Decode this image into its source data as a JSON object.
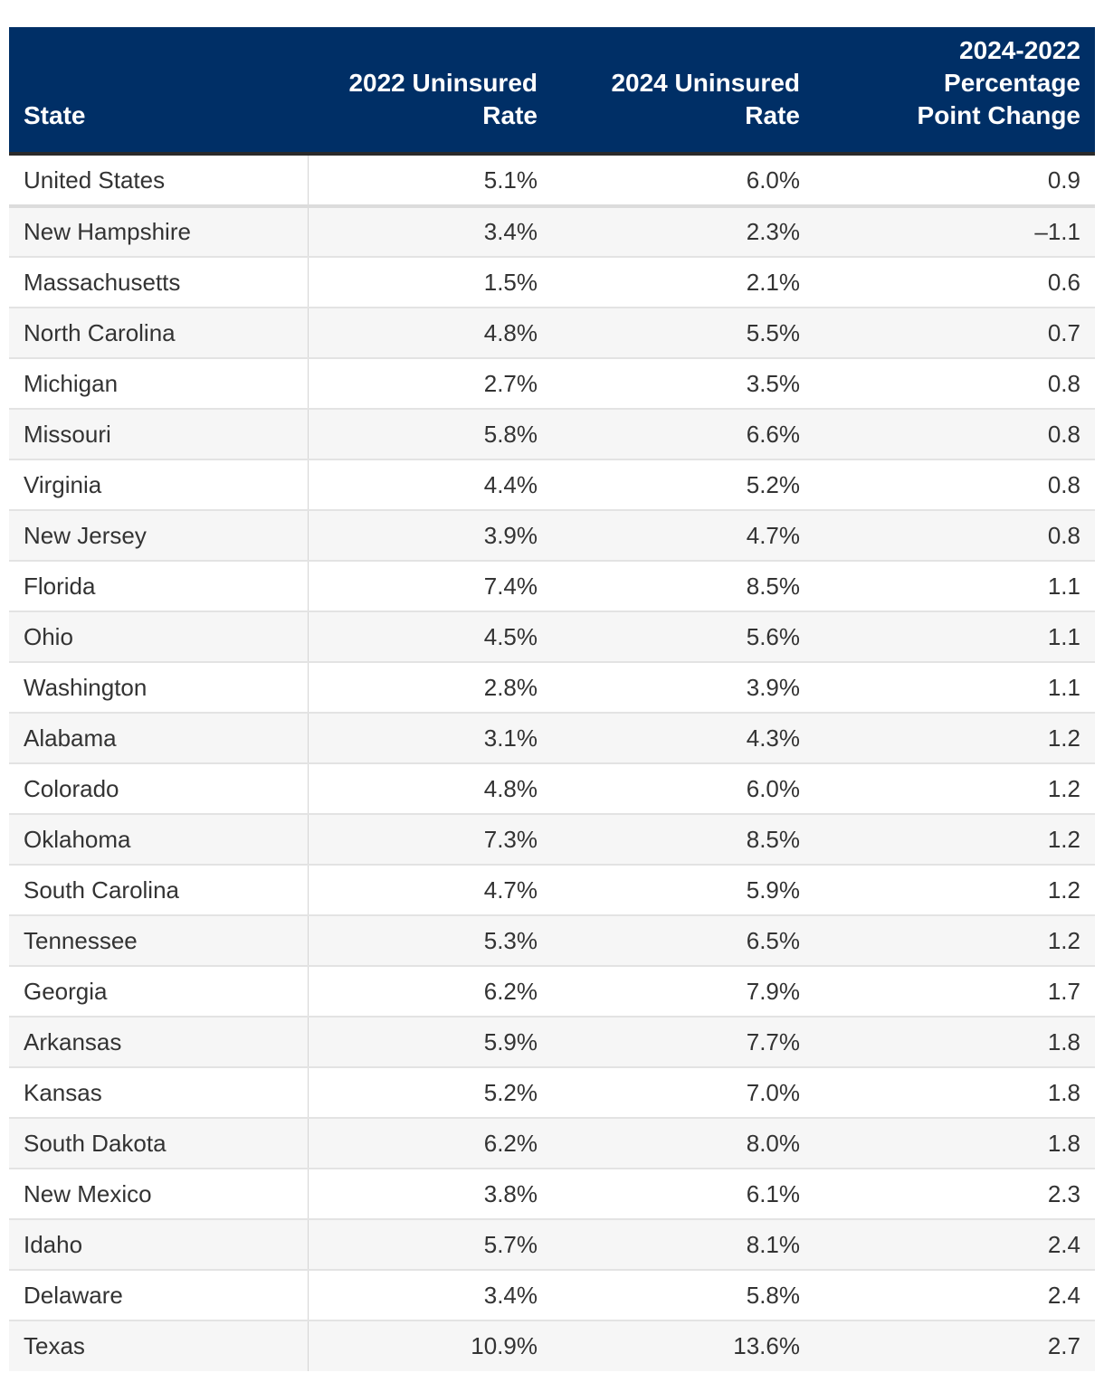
{
  "chart_data": {
    "type": "table",
    "columns": [
      "State",
      "2022 Uninsured Rate",
      "2024 Uninsured Rate",
      "2024-2022 Percentage Point Change"
    ],
    "rows": [
      [
        "United States",
        "5.1%",
        "6.0%",
        "0.9"
      ],
      [
        "New Hampshire",
        "3.4%",
        "2.3%",
        "–1.1"
      ],
      [
        "Massachusetts",
        "1.5%",
        "2.1%",
        "0.6"
      ],
      [
        "North Carolina",
        "4.8%",
        "5.5%",
        "0.7"
      ],
      [
        "Michigan",
        "2.7%",
        "3.5%",
        "0.8"
      ],
      [
        "Missouri",
        "5.8%",
        "6.6%",
        "0.8"
      ],
      [
        "Virginia",
        "4.4%",
        "5.2%",
        "0.8"
      ],
      [
        "New Jersey",
        "3.9%",
        "4.7%",
        "0.8"
      ],
      [
        "Florida",
        "7.4%",
        "8.5%",
        "1.1"
      ],
      [
        "Ohio",
        "4.5%",
        "5.6%",
        "1.1"
      ],
      [
        "Washington",
        "2.8%",
        "3.9%",
        "1.1"
      ],
      [
        "Alabama",
        "3.1%",
        "4.3%",
        "1.2"
      ],
      [
        "Colorado",
        "4.8%",
        "6.0%",
        "1.2"
      ],
      [
        "Oklahoma",
        "7.3%",
        "8.5%",
        "1.2"
      ],
      [
        "South Carolina",
        "4.7%",
        "5.9%",
        "1.2"
      ],
      [
        "Tennessee",
        "5.3%",
        "6.5%",
        "1.2"
      ],
      [
        "Georgia",
        "6.2%",
        "7.9%",
        "1.7"
      ],
      [
        "Arkansas",
        "5.9%",
        "7.7%",
        "1.8"
      ],
      [
        "Kansas",
        "5.2%",
        "7.0%",
        "1.8"
      ],
      [
        "South Dakota",
        "6.2%",
        "8.0%",
        "1.8"
      ],
      [
        "New Mexico",
        "3.8%",
        "6.1%",
        "2.3"
      ],
      [
        "Idaho",
        "5.7%",
        "8.1%",
        "2.4"
      ],
      [
        "Delaware",
        "3.4%",
        "5.8%",
        "2.4"
      ],
      [
        "Texas",
        "10.9%",
        "13.6%",
        "2.7"
      ]
    ]
  },
  "header": {
    "state": "State",
    "rate_2022_line1": "2022 Uninsured",
    "rate_2022_line2": "Rate",
    "rate_2024_line1": "2024 Uninsured",
    "rate_2024_line2": "Rate",
    "change_line1": "2024-2022",
    "change_line2": "Percentage",
    "change_line3": "Point Change"
  },
  "colors": {
    "header_background": "#002f66",
    "header_text": "#ffffff",
    "row_alt": "#f6f6f6"
  }
}
